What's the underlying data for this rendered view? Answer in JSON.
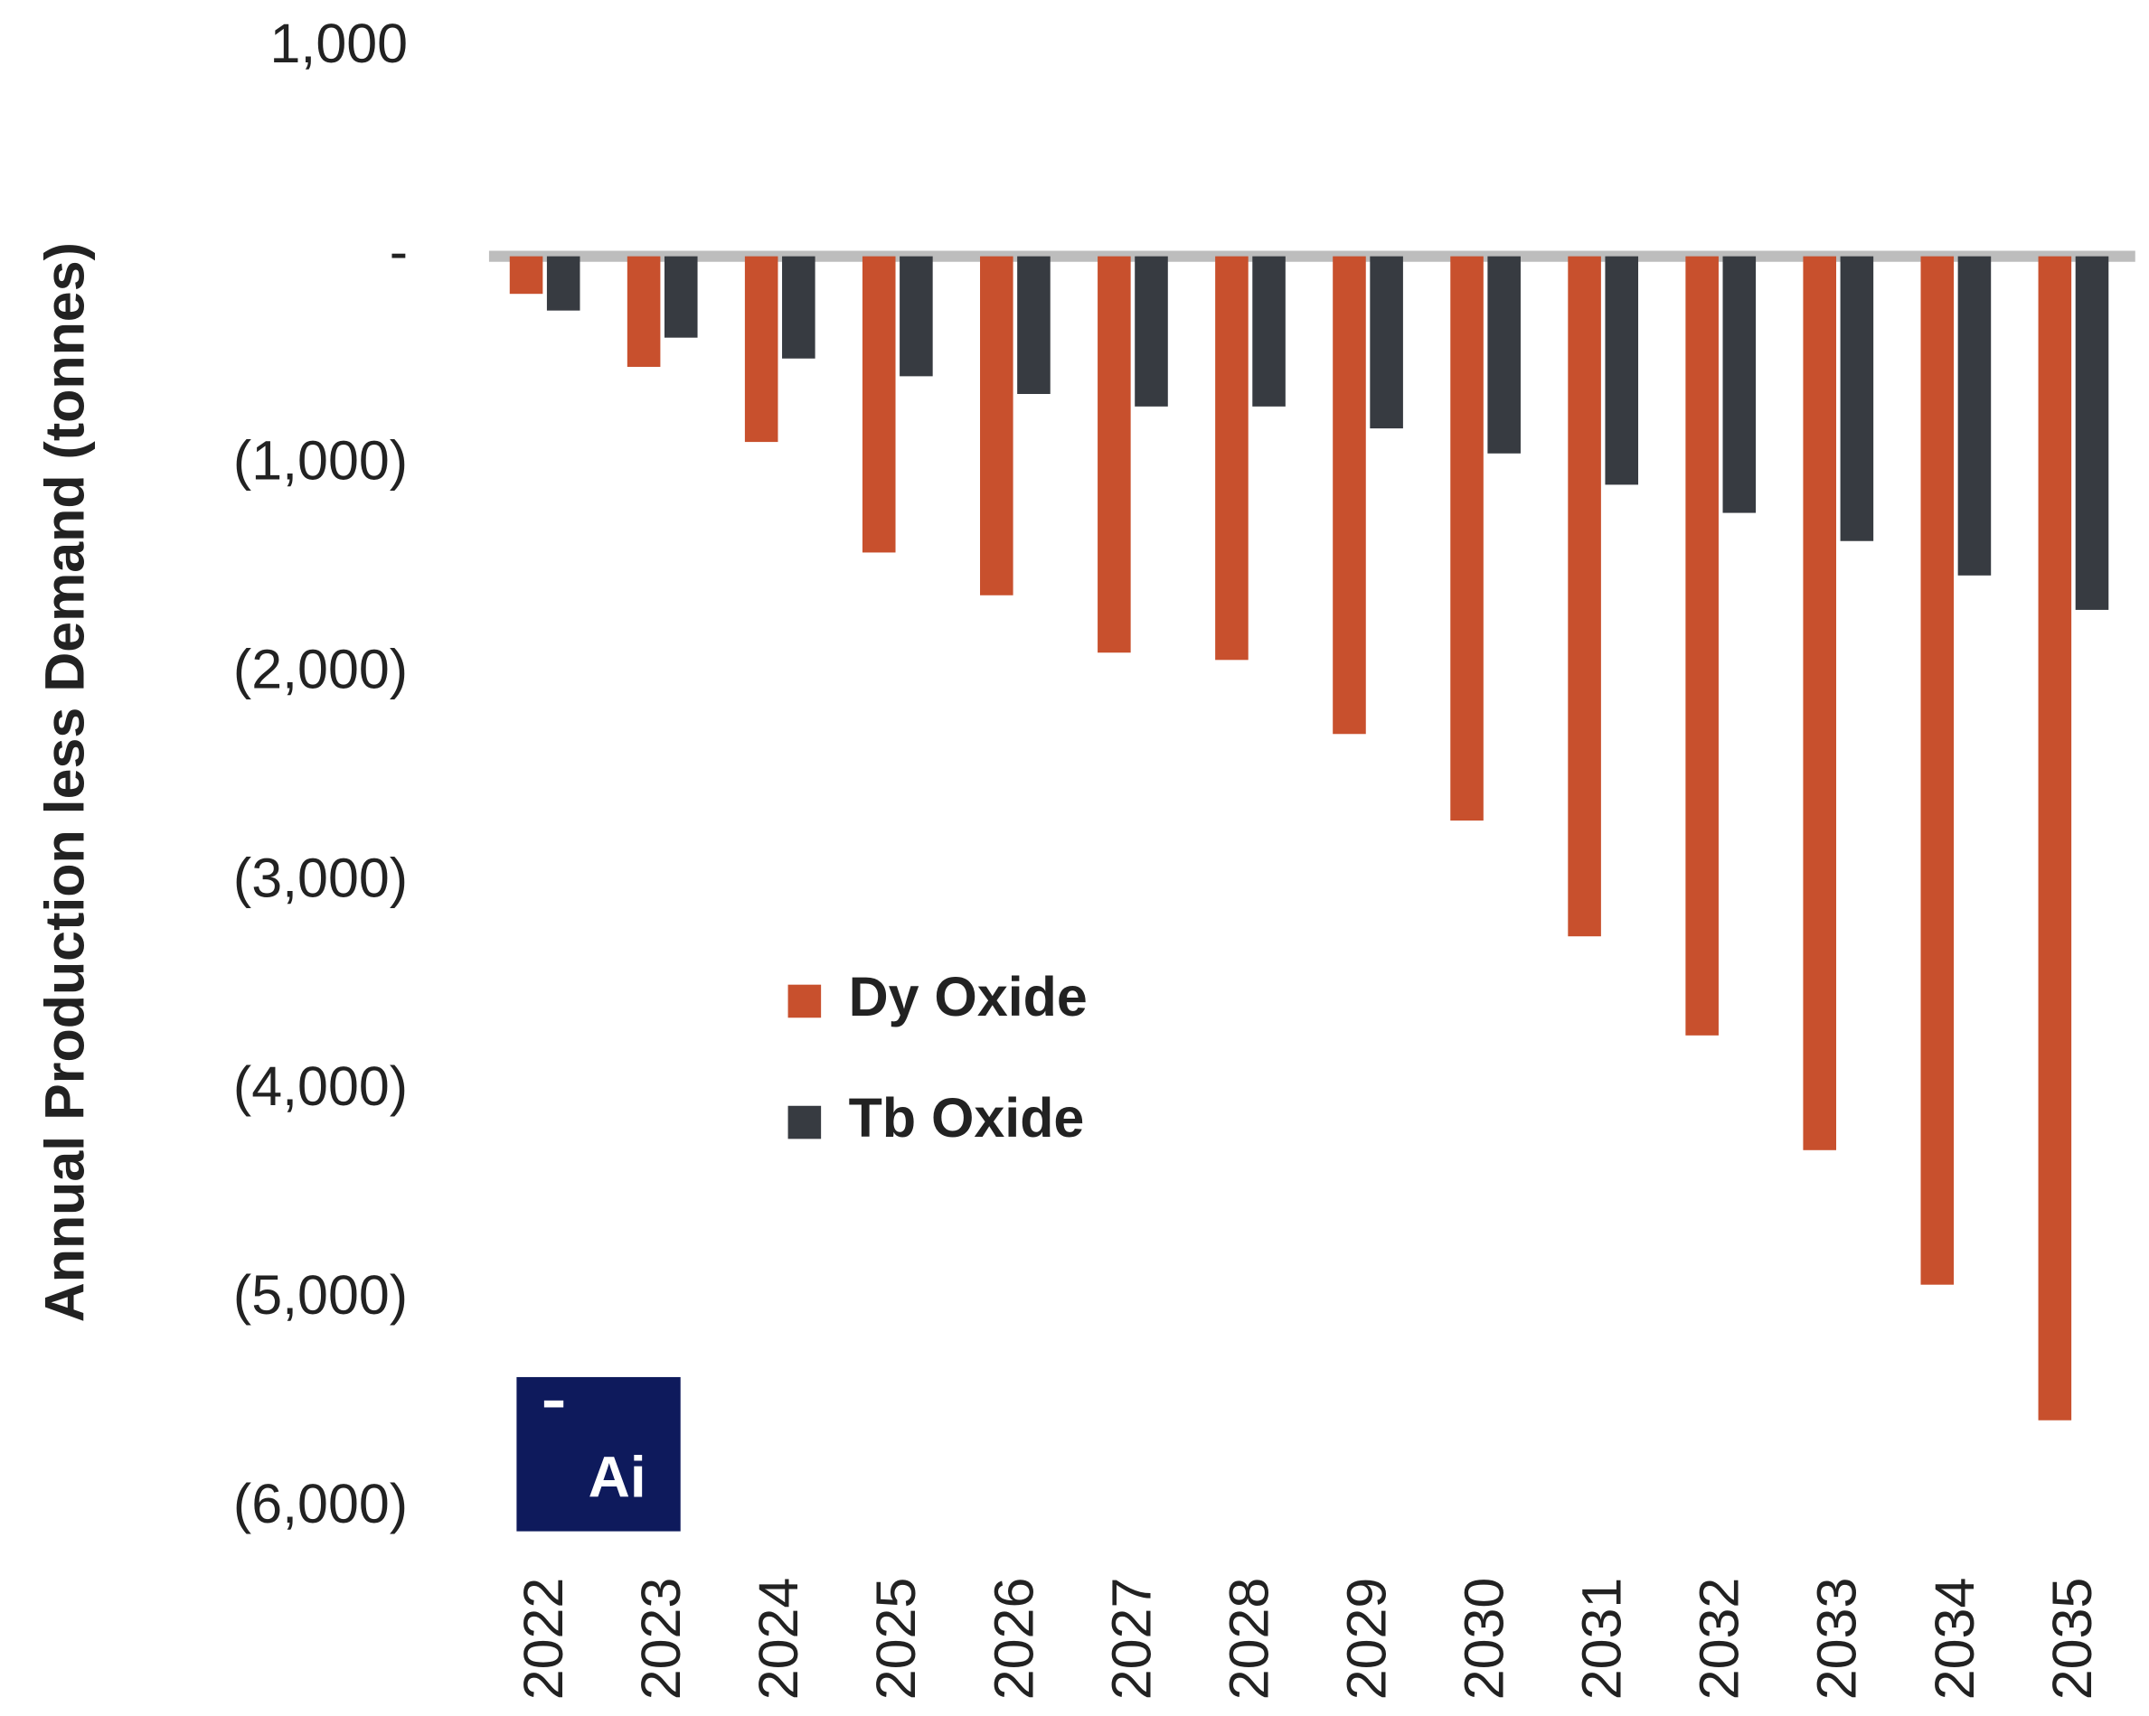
{
  "chart_data": {
    "type": "bar",
    "y_label": "Annual Production less Demand (tonnes)",
    "categories": [
      "2022",
      "2023",
      "2024",
      "2025",
      "2026",
      "2027",
      "2028",
      "2029",
      "2030",
      "2031",
      "2032",
      "2033",
      "2034",
      "2035"
    ],
    "series": [
      {
        "name": "Dy Oxide",
        "color": "#c8502d",
        "values": [
          -180,
          -530,
          -890,
          -1420,
          -1625,
          -1900,
          -1935,
          -2290,
          -2705,
          -3260,
          -3735,
          -4285,
          -4930,
          -5580
        ]
      },
      {
        "name": "Tb Oxide",
        "color": "#373b41",
        "values": [
          -260,
          -390,
          -490,
          -575,
          -660,
          -720,
          -720,
          -825,
          -945,
          -1095,
          -1230,
          -1365,
          -1530,
          -1695
        ]
      }
    ],
    "ylim": [
      -6000,
      1000
    ],
    "yticks": [
      {
        "value": 1000,
        "label": "1,000"
      },
      {
        "value": 0,
        "label": "-"
      },
      {
        "value": -1000,
        "label": "(1,000)"
      },
      {
        "value": -2000,
        "label": "(2,000)"
      },
      {
        "value": -3000,
        "label": "(3,000)"
      },
      {
        "value": -4000,
        "label": "(4,000)"
      },
      {
        "value": -5000,
        "label": "(5,000)"
      },
      {
        "value": -6000,
        "label": "(6,000)"
      }
    ],
    "logo": "Ai"
  }
}
